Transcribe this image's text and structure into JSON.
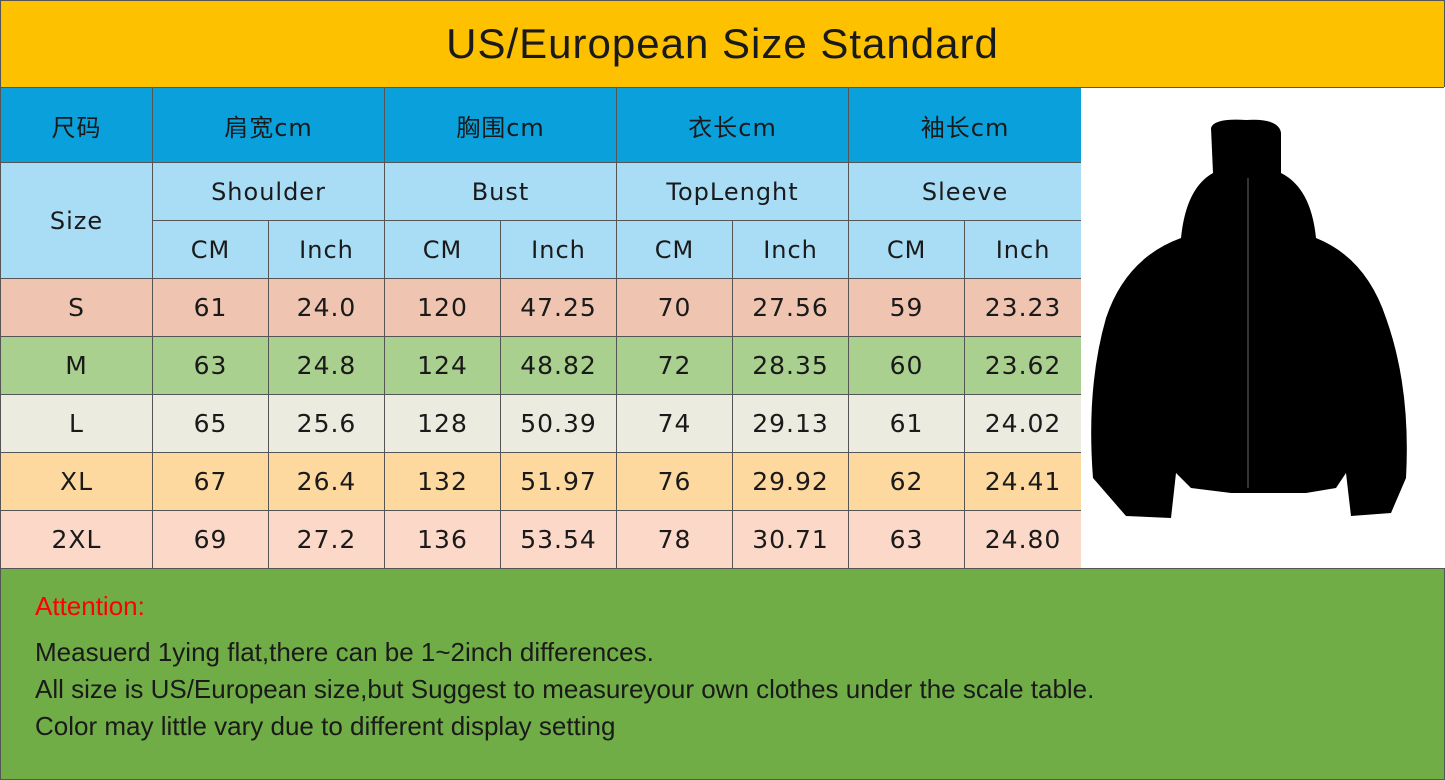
{
  "title": "US/European Size Standard",
  "header_cn": [
    "尺码",
    "肩宽cm",
    "胸围cm",
    "衣长cm",
    "袖长cm"
  ],
  "header_en": {
    "size": "Size",
    "groups": [
      "Shoulder",
      "Bust",
      "TopLenght",
      "Sleeve"
    ]
  },
  "units": [
    "CM",
    "Inch",
    "CM",
    "Inch",
    "CM",
    "Inch",
    "CM",
    "Inch"
  ],
  "rows": [
    {
      "size": "S",
      "values": [
        "61",
        "24.0",
        "120",
        "47.25",
        "70",
        "27.56",
        "59",
        "23.23"
      ],
      "color": "#efc4b0"
    },
    {
      "size": "M",
      "values": [
        "63",
        "24.8",
        "124",
        "48.82",
        "72",
        "28.35",
        "60",
        "23.62"
      ],
      "color": "#a9d08e"
    },
    {
      "size": "L",
      "values": [
        "65",
        "25.6",
        "128",
        "50.39",
        "74",
        "29.13",
        "61",
        "24.02"
      ],
      "color": "#ebebdf"
    },
    {
      "size": "XL",
      "values": [
        "67",
        "26.4",
        "132",
        "51.97",
        "76",
        "29.92",
        "62",
        "24.41"
      ],
      "color": "#fdd9a0"
    },
    {
      "size": "2XL",
      "values": [
        "69",
        "27.2",
        "136",
        "53.54",
        "78",
        "30.71",
        "63",
        "24.80"
      ],
      "color": "#fbd8c8"
    }
  ],
  "product_image": "black-zip-hoodie",
  "attention": {
    "label": "Attention:",
    "lines": [
      "Measuerd 1ying flat,there can be 1~2inch differences.",
      "All size is US/European size,but Suggest to measureyour own clothes under the scale table.",
      "Color may little vary due to different display setting"
    ]
  }
}
